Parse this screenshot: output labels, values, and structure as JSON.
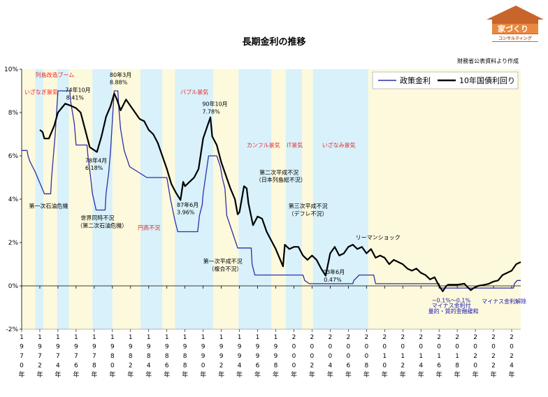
{
  "chart_data": {
    "type": "line",
    "title": "長期金利の推移",
    "source_note": "財務省公表資料より作成",
    "y_range": [
      -2,
      10
    ],
    "y_ticks": [
      "10%",
      "8%",
      "6%",
      "4%",
      "2%",
      "0%",
      "-2%"
    ],
    "y_tick_values": [
      10,
      8,
      6,
      4,
      2,
      0,
      -2
    ],
    "x_range": [
      1970,
      2025
    ],
    "x_ticks": [
      {
        "year": 1970,
        "label": "1970年"
      },
      {
        "year": 1972,
        "label": "1972年"
      },
      {
        "year": 1974,
        "label": "1974年"
      },
      {
        "year": 1976,
        "label": "1976年"
      },
      {
        "year": 1978,
        "label": "1978年"
      },
      {
        "year": 1980,
        "label": "1980年"
      },
      {
        "year": 1982,
        "label": "1982年"
      },
      {
        "year": 1984,
        "label": "1984年"
      },
      {
        "year": 1986,
        "label": "1986年"
      },
      {
        "year": 1988,
        "label": "1988年"
      },
      {
        "year": 1990,
        "label": "1990年"
      },
      {
        "year": 1992,
        "label": "1992年"
      },
      {
        "year": 1994,
        "label": "1994年"
      },
      {
        "year": 1996,
        "label": "1996年"
      },
      {
        "year": 1998,
        "label": "1998年"
      },
      {
        "year": 2000,
        "label": "2000年"
      },
      {
        "year": 2002,
        "label": "2002年"
      },
      {
        "year": 2004,
        "label": "2004年"
      },
      {
        "year": 2006,
        "label": "2006年"
      },
      {
        "year": 2008,
        "label": "2008年"
      },
      {
        "year": 2010,
        "label": "2010年"
      },
      {
        "year": 2012,
        "label": "2012年"
      },
      {
        "year": 2014,
        "label": "2014年"
      },
      {
        "year": 2016,
        "label": "2016年"
      },
      {
        "year": 2018,
        "label": "2018年"
      },
      {
        "year": 2020,
        "label": "2020年"
      },
      {
        "year": 2022,
        "label": "2022年"
      },
      {
        "year": 2024,
        "label": "2024年"
      }
    ],
    "legend_placement": "top-right",
    "grid": false,
    "series": [
      {
        "name": "政策金利",
        "color": "#2e2ea8",
        "line_weight": "thin",
        "points": [
          [
            1970.0,
            6.25
          ],
          [
            1970.6,
            6.25
          ],
          [
            1970.7,
            6.0
          ],
          [
            1970.9,
            5.75
          ],
          [
            1971.2,
            5.5
          ],
          [
            1971.5,
            5.25
          ],
          [
            1972.0,
            4.75
          ],
          [
            1972.5,
            4.25
          ],
          [
            1973.2,
            4.25
          ],
          [
            1973.3,
            5.0
          ],
          [
            1973.5,
            6.0
          ],
          [
            1973.7,
            7.0
          ],
          [
            1974.0,
            9.0
          ],
          [
            1975.3,
            9.0
          ],
          [
            1975.4,
            8.5
          ],
          [
            1975.6,
            8.0
          ],
          [
            1975.8,
            7.5
          ],
          [
            1975.9,
            7.0
          ],
          [
            1976.0,
            6.5
          ],
          [
            1977.2,
            6.5
          ],
          [
            1977.3,
            6.0
          ],
          [
            1977.6,
            5.0
          ],
          [
            1977.8,
            4.25
          ],
          [
            1978.2,
            3.5
          ],
          [
            1979.2,
            3.5
          ],
          [
            1979.3,
            4.25
          ],
          [
            1979.6,
            5.25
          ],
          [
            1979.8,
            6.25
          ],
          [
            1980.2,
            9.0
          ],
          [
            1980.6,
            9.0
          ],
          [
            1980.7,
            8.25
          ],
          [
            1980.9,
            7.25
          ],
          [
            1981.3,
            6.25
          ],
          [
            1981.9,
            5.5
          ],
          [
            1983.8,
            5.0
          ],
          [
            1986.0,
            5.0
          ],
          [
            1986.2,
            4.5
          ],
          [
            1986.4,
            4.0
          ],
          [
            1986.9,
            3.0
          ],
          [
            1987.2,
            2.5
          ],
          [
            1989.4,
            2.5
          ],
          [
            1989.6,
            3.25
          ],
          [
            1989.9,
            3.75
          ],
          [
            1990.0,
            4.25
          ],
          [
            1990.6,
            6.0
          ],
          [
            1991.5,
            6.0
          ],
          [
            1991.9,
            5.5
          ],
          [
            1992.1,
            5.0
          ],
          [
            1992.4,
            4.5
          ],
          [
            1992.6,
            3.25
          ],
          [
            1993.2,
            2.5
          ],
          [
            1993.8,
            1.75
          ],
          [
            1995.3,
            1.75
          ],
          [
            1995.4,
            1.0
          ],
          [
            1995.7,
            0.5
          ],
          [
            2001.0,
            0.5
          ],
          [
            2001.2,
            0.25
          ],
          [
            2001.7,
            0.1
          ],
          [
            2006.5,
            0.1
          ],
          [
            2006.6,
            0.25
          ],
          [
            2007.2,
            0.5
          ],
          [
            2008.8,
            0.5
          ],
          [
            2008.9,
            0.3
          ],
          [
            2009.0,
            0.1
          ],
          [
            2016.0,
            0.1
          ],
          [
            2016.1,
            -0.1
          ],
          [
            2024.2,
            -0.1
          ],
          [
            2024.3,
            0.1
          ],
          [
            2024.6,
            0.25
          ],
          [
            2025.0,
            0.25
          ]
        ]
      },
      {
        "name": "10年国債利回り",
        "color": "#000000",
        "line_weight": "thick",
        "points": [
          [
            1972.0,
            7.2
          ],
          [
            1972.3,
            7.1
          ],
          [
            1972.5,
            6.8
          ],
          [
            1973.0,
            6.8
          ],
          [
            1973.3,
            7.1
          ],
          [
            1973.6,
            7.4
          ],
          [
            1974.0,
            8.0
          ],
          [
            1974.8,
            8.41
          ],
          [
            1975.5,
            8.3
          ],
          [
            1976.0,
            8.2
          ],
          [
            1976.5,
            8.0
          ],
          [
            1977.0,
            7.2
          ],
          [
            1977.5,
            6.4
          ],
          [
            1978.3,
            6.18
          ],
          [
            1978.8,
            6.9
          ],
          [
            1979.3,
            7.8
          ],
          [
            1979.8,
            8.3
          ],
          [
            1980.2,
            8.88
          ],
          [
            1980.5,
            8.6
          ],
          [
            1980.9,
            8.1
          ],
          [
            1981.5,
            8.6
          ],
          [
            1982.0,
            8.3
          ],
          [
            1982.5,
            8.0
          ],
          [
            1983.0,
            7.7
          ],
          [
            1983.5,
            7.6
          ],
          [
            1984.0,
            7.2
          ],
          [
            1984.5,
            7.0
          ],
          [
            1985.0,
            6.6
          ],
          [
            1985.5,
            6.0
          ],
          [
            1986.0,
            5.4
          ],
          [
            1986.5,
            4.7
          ],
          [
            1987.0,
            4.3
          ],
          [
            1987.5,
            3.96
          ],
          [
            1987.8,
            4.8
          ],
          [
            1988.0,
            4.6
          ],
          [
            1988.5,
            4.8
          ],
          [
            1989.0,
            5.0
          ],
          [
            1989.5,
            5.4
          ],
          [
            1990.0,
            6.8
          ],
          [
            1990.8,
            7.78
          ],
          [
            1991.0,
            6.9
          ],
          [
            1991.5,
            6.5
          ],
          [
            1992.0,
            5.7
          ],
          [
            1992.5,
            5.1
          ],
          [
            1993.0,
            4.5
          ],
          [
            1993.5,
            4.0
          ],
          [
            1993.8,
            3.3
          ],
          [
            1994.0,
            3.4
          ],
          [
            1994.5,
            4.6
          ],
          [
            1994.8,
            4.5
          ],
          [
            1995.0,
            3.8
          ],
          [
            1995.5,
            2.8
          ],
          [
            1996.0,
            3.2
          ],
          [
            1996.5,
            3.1
          ],
          [
            1997.0,
            2.5
          ],
          [
            1997.5,
            2.1
          ],
          [
            1998.0,
            1.7
          ],
          [
            1998.8,
            0.9
          ],
          [
            1999.0,
            1.9
          ],
          [
            1999.5,
            1.7
          ],
          [
            2000.0,
            1.8
          ],
          [
            2000.5,
            1.8
          ],
          [
            2001.0,
            1.4
          ],
          [
            2001.5,
            1.2
          ],
          [
            2002.0,
            1.4
          ],
          [
            2002.5,
            1.2
          ],
          [
            2003.0,
            0.8
          ],
          [
            2003.5,
            0.47
          ],
          [
            2004.0,
            1.5
          ],
          [
            2004.5,
            1.8
          ],
          [
            2005.0,
            1.4
          ],
          [
            2005.5,
            1.5
          ],
          [
            2006.0,
            1.8
          ],
          [
            2006.5,
            1.9
          ],
          [
            2007.0,
            1.7
          ],
          [
            2007.5,
            1.8
          ],
          [
            2008.0,
            1.5
          ],
          [
            2008.5,
            1.7
          ],
          [
            2009.0,
            1.3
          ],
          [
            2009.5,
            1.4
          ],
          [
            2010.0,
            1.3
          ],
          [
            2010.5,
            1.0
          ],
          [
            2011.0,
            1.2
          ],
          [
            2011.5,
            1.1
          ],
          [
            2012.0,
            1.0
          ],
          [
            2012.5,
            0.8
          ],
          [
            2013.0,
            0.7
          ],
          [
            2013.5,
            0.8
          ],
          [
            2014.0,
            0.6
          ],
          [
            2014.5,
            0.5
          ],
          [
            2015.0,
            0.3
          ],
          [
            2015.5,
            0.4
          ],
          [
            2016.0,
            0.0
          ],
          [
            2016.4,
            -0.25
          ],
          [
            2016.8,
            0.0
          ],
          [
            2017.0,
            0.05
          ],
          [
            2018.0,
            0.05
          ],
          [
            2018.8,
            0.1
          ],
          [
            2019.0,
            0.0
          ],
          [
            2019.5,
            -0.2
          ],
          [
            2019.8,
            -0.1
          ],
          [
            2020.3,
            0.0
          ],
          [
            2021.0,
            0.05
          ],
          [
            2021.5,
            0.1
          ],
          [
            2022.0,
            0.2
          ],
          [
            2022.5,
            0.25
          ],
          [
            2023.0,
            0.5
          ],
          [
            2023.5,
            0.6
          ],
          [
            2024.0,
            0.7
          ],
          [
            2024.5,
            1.0
          ],
          [
            2025.0,
            1.1
          ]
        ]
      }
    ],
    "background_bands": {
      "yellow": "#fdf9dc",
      "blue": "#d8f1fa",
      "spans": [
        {
          "from": 1970.0,
          "to": 1971.5,
          "color": "yellow"
        },
        {
          "from": 1971.5,
          "to": 1972.4,
          "color": "blue"
        },
        {
          "from": 1972.4,
          "to": 1973.9,
          "color": "yellow"
        },
        {
          "from": 1973.9,
          "to": 1975.2,
          "color": "blue"
        },
        {
          "from": 1975.2,
          "to": 1977.8,
          "color": "yellow"
        },
        {
          "from": 1977.8,
          "to": 1980.0,
          "color": "blue"
        },
        {
          "from": 1980.0,
          "to": 1983.1,
          "color": "yellow"
        },
        {
          "from": 1983.1,
          "to": 1985.5,
          "color": "blue"
        },
        {
          "from": 1985.5,
          "to": 1986.9,
          "color": "yellow"
        },
        {
          "from": 1986.9,
          "to": 1991.1,
          "color": "blue"
        },
        {
          "from": 1991.1,
          "to": 1993.9,
          "color": "yellow"
        },
        {
          "from": 1993.9,
          "to": 1997.5,
          "color": "blue"
        },
        {
          "from": 1997.5,
          "to": 1999.1,
          "color": "yellow"
        },
        {
          "from": 1999.1,
          "to": 2000.9,
          "color": "blue"
        },
        {
          "from": 2000.9,
          "to": 2002.1,
          "color": "yellow"
        },
        {
          "from": 2002.1,
          "to": 2008.2,
          "color": "blue"
        },
        {
          "from": 2008.2,
          "to": 2025.0,
          "color": "yellow"
        }
      ]
    },
    "annotations": [
      {
        "text": "列島改造ブーム",
        "x": 1971.5,
        "y": 9.65,
        "color": "red"
      },
      {
        "text": "いざなぎ景気",
        "x": 1970.3,
        "y": 8.85,
        "color": "red"
      },
      {
        "text": "74年10月",
        "x": 1974.8,
        "y": 8.95,
        "color": "black"
      },
      {
        "text": "8.41%",
        "x": 1974.9,
        "y": 8.6,
        "color": "black"
      },
      {
        "text": "80年3月",
        "x": 1979.7,
        "y": 9.65,
        "color": "black"
      },
      {
        "text": "8.88%",
        "x": 1979.7,
        "y": 9.3,
        "color": "black"
      },
      {
        "text": "バブル景気",
        "x": 1987.5,
        "y": 8.85,
        "color": "red"
      },
      {
        "text": "90年10月",
        "x": 1989.9,
        "y": 8.3,
        "color": "black"
      },
      {
        "text": "7.78%",
        "x": 1989.9,
        "y": 7.95,
        "color": "black"
      },
      {
        "text": "78年4月",
        "x": 1977.0,
        "y": 5.7,
        "color": "black"
      },
      {
        "text": "6.18%",
        "x": 1977.0,
        "y": 5.35,
        "color": "black"
      },
      {
        "text": "カンフル景気",
        "x": 1994.8,
        "y": 6.4,
        "color": "red"
      },
      {
        "text": "IT景気",
        "x": 1999.2,
        "y": 6.4,
        "color": "red"
      },
      {
        "text": "いざなみ景気",
        "x": 2003.1,
        "y": 6.4,
        "color": "red"
      },
      {
        "text": "第二次平成不況",
        "x": 1996.2,
        "y": 5.15,
        "color": "black"
      },
      {
        "text": "（日本列島総不況）",
        "x": 1995.8,
        "y": 4.8,
        "color": "black"
      },
      {
        "text": "第一次石油危機",
        "x": 1970.8,
        "y": 3.6,
        "color": "black"
      },
      {
        "text": "87年6月",
        "x": 1987.1,
        "y": 3.65,
        "color": "black"
      },
      {
        "text": "3.96%",
        "x": 1987.1,
        "y": 3.3,
        "color": "black"
      },
      {
        "text": "世界同時不況",
        "x": 1976.5,
        "y": 3.05,
        "color": "black"
      },
      {
        "text": "（第二次石油危機）",
        "x": 1976.1,
        "y": 2.7,
        "color": "black"
      },
      {
        "text": "円高不況",
        "x": 1982.8,
        "y": 2.6,
        "color": "red"
      },
      {
        "text": "第三次平成不況",
        "x": 1999.4,
        "y": 3.6,
        "color": "black"
      },
      {
        "text": "（デフレ不況）",
        "x": 1999.4,
        "y": 3.25,
        "color": "black"
      },
      {
        "text": "リーマンショック",
        "x": 2006.8,
        "y": 2.15,
        "color": "black"
      },
      {
        "text": "第一次平成不況",
        "x": 1990.0,
        "y": 1.05,
        "color": "black"
      },
      {
        "text": "（複合不況）",
        "x": 1990.6,
        "y": 0.7,
        "color": "black"
      },
      {
        "text": "03年6月",
        "x": 2003.2,
        "y": 0.55,
        "color": "black"
      },
      {
        "text": "0.47%",
        "x": 2003.3,
        "y": 0.2,
        "color": "black"
      },
      {
        "text": "−0.1%～0.1%",
        "x": 2015.2,
        "y": -0.75,
        "color": "blue"
      },
      {
        "text": "マイナス金利付",
        "x": 2015.2,
        "y": -1.0,
        "color": "blue"
      },
      {
        "text": "量的・質的金融緩和",
        "x": 2014.8,
        "y": -1.25,
        "color": "blue"
      },
      {
        "text": "マイナス金利解除",
        "x": 2020.7,
        "y": -0.8,
        "color": "blue"
      }
    ]
  },
  "logo": {
    "text": "家づくり",
    "subtext": "コンサルティング"
  }
}
